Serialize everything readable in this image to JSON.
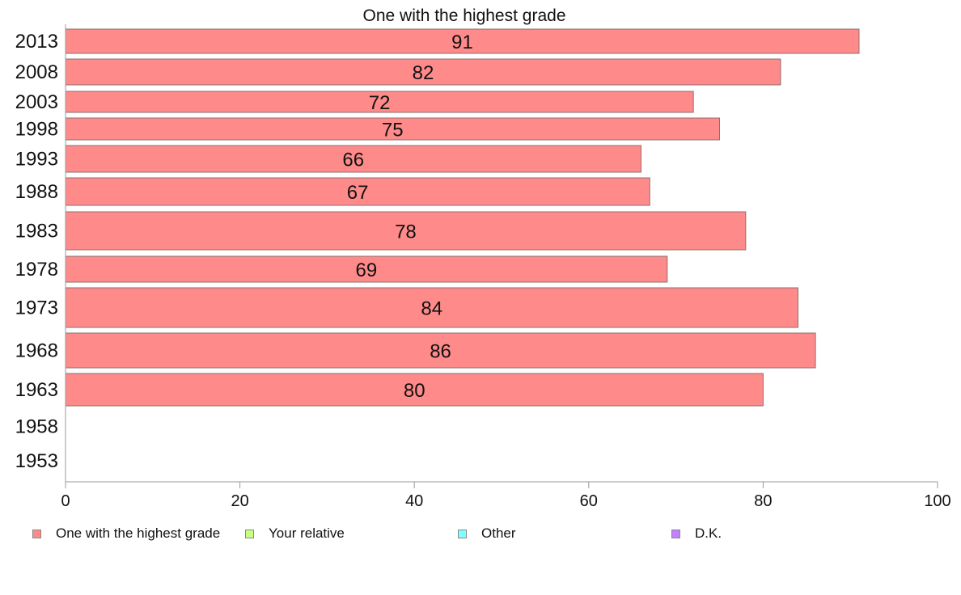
{
  "chart_data": {
    "type": "bar",
    "orientation": "horizontal",
    "title": "One with the highest grade",
    "xlim": [
      0,
      100
    ],
    "x_ticks": [
      0,
      20,
      40,
      60,
      80,
      100
    ],
    "grid": false,
    "categories": [
      "2013",
      "2008",
      "2003",
      "1998",
      "1993",
      "1988",
      "1983",
      "1978",
      "1973",
      "1968",
      "1963",
      "1958",
      "1953"
    ],
    "series": [
      {
        "name": "One with the highest grade",
        "color": "#ff8a8a",
        "values": [
          91,
          82,
          72,
          75,
          66,
          67,
          78,
          69,
          84,
          86,
          80,
          null,
          null
        ]
      }
    ],
    "legend": {
      "placement": "bottom",
      "items": [
        {
          "label": "One with the highest grade",
          "color": "#ff8a8a"
        },
        {
          "label": "Your relative",
          "color": "#c8ff80"
        },
        {
          "label": "Other",
          "color": "#80ffff"
        },
        {
          "label": "D.K.",
          "color": "#c080ff"
        }
      ]
    }
  }
}
